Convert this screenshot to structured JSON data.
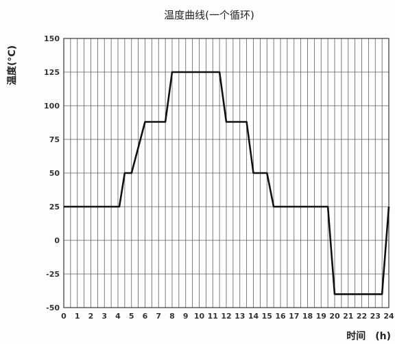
{
  "chart_data": {
    "type": "line",
    "title": "温度曲线(一个循环)",
    "ylabel": "温度(°C)",
    "xlabel": "时间　(h)",
    "xlim": [
      0,
      24
    ],
    "ylim": [
      -50,
      150
    ],
    "x_ticks": [
      0,
      1,
      2,
      3,
      4,
      5,
      6,
      7,
      8,
      9,
      10,
      11,
      12,
      13,
      14,
      15,
      16,
      17,
      18,
      19,
      20,
      21,
      22,
      23,
      24
    ],
    "y_ticks": [
      150,
      125,
      100,
      75,
      50,
      25,
      0,
      -25,
      -50
    ],
    "x_minor_step": 0.5,
    "grid": true,
    "series": [
      {
        "x": [
          0,
          4.1,
          4.5,
          5.0,
          6.0,
          7.5,
          8.0,
          11.5,
          12.0,
          13.5,
          14.0,
          15.0,
          15.5,
          19.5,
          20.0,
          23.5,
          24.0
        ],
        "y": [
          25,
          25,
          50,
          50,
          88,
          88,
          125,
          125,
          88,
          88,
          50,
          50,
          25,
          25,
          -40,
          -40,
          25
        ]
      }
    ]
  },
  "colors": {
    "background": "#fdfdfb",
    "plot_background": "#ffffff",
    "grid": "#5a5a5a",
    "line": "#111111",
    "frame": "#333333"
  }
}
